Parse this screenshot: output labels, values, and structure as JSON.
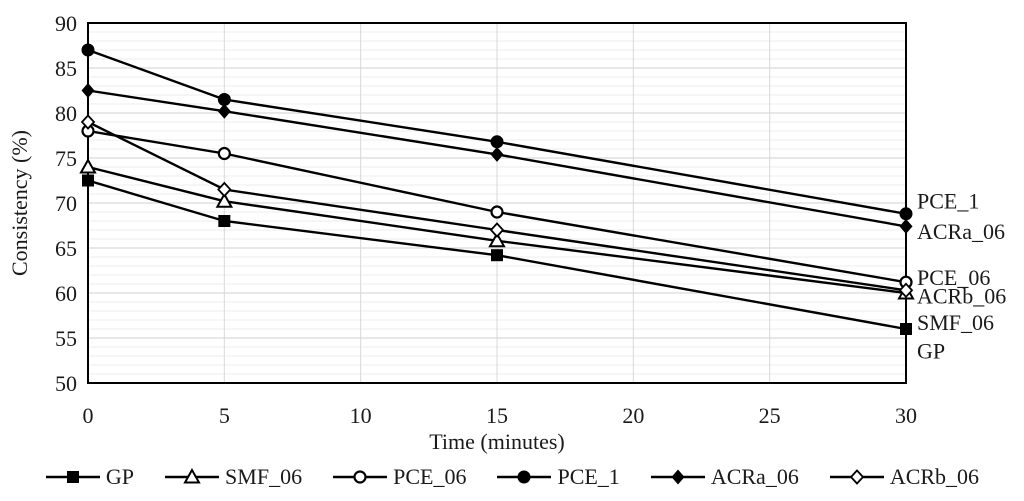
{
  "chart_data": {
    "type": "line",
    "title": "",
    "xlabel": "Time (minutes)",
    "ylabel": "Consistency (%)",
    "x": [
      0,
      5,
      15,
      30
    ],
    "xticks": [
      0,
      5,
      10,
      15,
      20,
      25,
      30
    ],
    "yticks": [
      50,
      55,
      60,
      65,
      70,
      75,
      80,
      85,
      90
    ],
    "xlim": [
      0,
      30
    ],
    "ylim": [
      50,
      90
    ],
    "grid": {
      "horizontal_minor_step": 1,
      "horizontal_major_step": 5,
      "vertical_at_xticks": true
    },
    "series": [
      {
        "name": "GP",
        "marker": "square-filled",
        "values": [
          72.5,
          68.0,
          64.2,
          56.0
        ]
      },
      {
        "name": "SMF_06",
        "marker": "triangle-open",
        "values": [
          74.0,
          70.2,
          65.8,
          60.0
        ]
      },
      {
        "name": "PCE_06",
        "marker": "circle-open",
        "values": [
          78.0,
          75.5,
          69.0,
          61.2
        ]
      },
      {
        "name": "PCE_1",
        "marker": "circle-filled",
        "values": [
          87.0,
          81.5,
          76.8,
          68.8
        ]
      },
      {
        "name": "ACRa_06",
        "marker": "diamond-filled",
        "values": [
          82.5,
          80.2,
          75.4,
          67.4
        ]
      },
      {
        "name": "ACRb_06",
        "marker": "diamond-open",
        "values": [
          79.0,
          71.5,
          67.0,
          60.3
        ]
      }
    ],
    "end_labels": [
      {
        "text": "PCE_1",
        "y_value": 70.3
      },
      {
        "text": "ACRa_06",
        "y_value": 66.9
      },
      {
        "text": "PCE_06",
        "y_value": 61.8
      },
      {
        "text": "ACRb_06",
        "y_value": 59.7
      },
      {
        "text": "SMF_06",
        "y_value": 56.8
      },
      {
        "text": "GP",
        "y_value": 53.6
      }
    ],
    "legend": {
      "position": "bottom",
      "entries": [
        "GP",
        "SMF_06",
        "PCE_06",
        "PCE_1",
        "ACRa_06",
        "ACRb_06"
      ]
    },
    "colors": {
      "series": "#000000",
      "grid_minor": "#ececec",
      "grid_major": "#d0d0d0",
      "grid_vertical": "#d9d9d9",
      "border": "#000000",
      "text": "#1a1a1a",
      "background": "#ffffff"
    }
  }
}
